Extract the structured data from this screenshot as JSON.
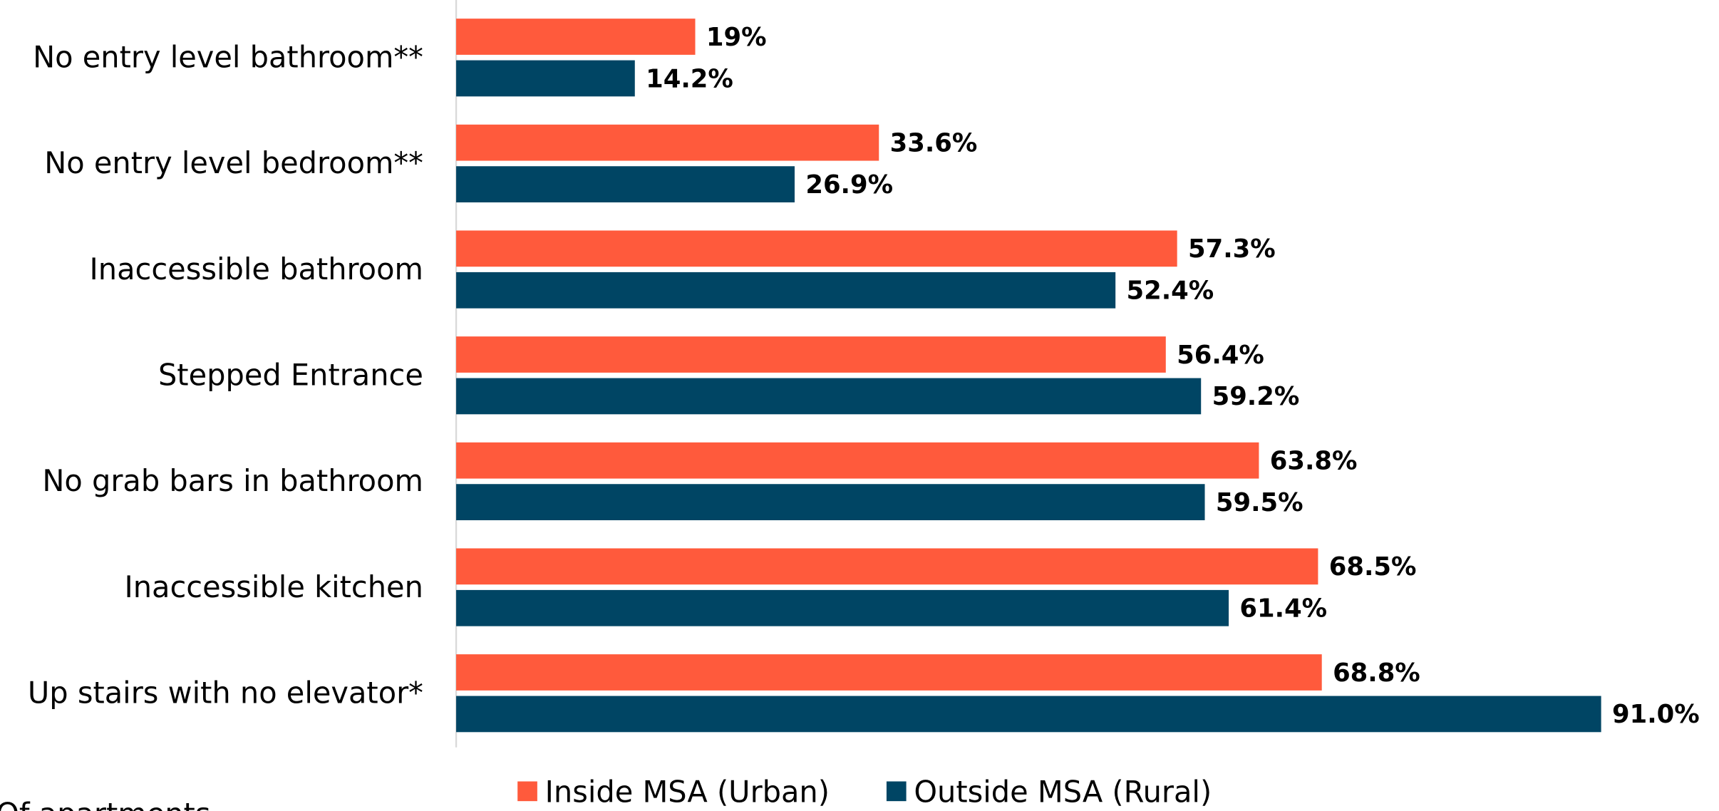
{
  "chart_data": {
    "type": "hbar",
    "categories": [
      "No entry level  bathroom**",
      "No entry level bedroom**",
      "Inaccessible bathroom",
      "Stepped Entrance",
      "No grab bars in bathroom",
      "Inaccessible kitchen",
      "Up stairs with no elevator*"
    ],
    "series": [
      {
        "name": "Inside MSA (Urban)",
        "color": "#ff5a3c",
        "values": [
          19,
          33.6,
          57.3,
          56.4,
          63.8,
          68.5,
          68.8
        ],
        "value_labels": [
          "19%",
          "33.6%",
          "57.3%",
          "56.4%",
          "63.8%",
          "68.5%",
          "68.8%"
        ]
      },
      {
        "name": "Outside MSA (Rural)",
        "color": "#004564",
        "values": [
          14.2,
          26.9,
          52.4,
          59.2,
          59.5,
          61.4,
          91.0
        ],
        "value_labels": [
          "14.2%",
          "26.9%",
          "52.4%",
          "59.2%",
          "59.5%",
          "61.4%",
          "91.0%"
        ]
      }
    ],
    "xlim": [
      0,
      100
    ],
    "legend": "bottom",
    "note": "Of apartments"
  }
}
